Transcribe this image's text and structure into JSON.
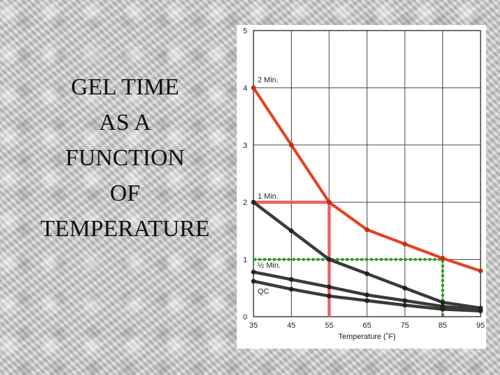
{
  "title": {
    "lines": [
      "GEL  TIME",
      "AS  A",
      "FUNCTION",
      "OF",
      "TEMPERATURE"
    ]
  },
  "chart_data": {
    "type": "line",
    "xlabel": "Temperature (˚F)",
    "ylabel": "",
    "x_ticks": [
      35,
      45,
      55,
      65,
      75,
      85,
      95
    ],
    "y_ticks": [
      0,
      1,
      2,
      3,
      4,
      5
    ],
    "xlim": [
      35,
      95
    ],
    "ylim": [
      0,
      5
    ],
    "grid": true,
    "series": [
      {
        "name": "2 Min.",
        "color": "#e8401f",
        "x": [
          35,
          45,
          55,
          65,
          75,
          85,
          95
        ],
        "y": [
          4.0,
          3.0,
          2.0,
          1.52,
          1.27,
          1.02,
          0.8
        ]
      },
      {
        "name": "1 Min.",
        "color": "#3a3a3a",
        "x": [
          35,
          45,
          55,
          65,
          75,
          85,
          95
        ],
        "y": [
          2.0,
          1.5,
          1.0,
          0.75,
          0.5,
          0.25,
          0.15
        ]
      },
      {
        "name": "½ Min.",
        "color": "#3a3a3a",
        "x": [
          35,
          45,
          55,
          65,
          75,
          85,
          95
        ],
        "y": [
          0.78,
          0.65,
          0.52,
          0.38,
          0.28,
          0.18,
          0.12
        ]
      },
      {
        "name": "QC",
        "color": "#3a3a3a",
        "x": [
          35,
          45,
          55,
          65,
          75,
          85,
          95
        ],
        "y": [
          0.62,
          0.48,
          0.36,
          0.28,
          0.2,
          0.13,
          0.1
        ]
      }
    ],
    "reference_lines": [
      {
        "color": "#f06060",
        "style": "solid",
        "points": [
          [
            35,
            2.0
          ],
          [
            55,
            2.0
          ],
          [
            55,
            0
          ]
        ]
      },
      {
        "color": "#1aa51a",
        "style": "dotted",
        "points": [
          [
            35,
            1.0
          ],
          [
            85,
            1.0
          ],
          [
            85,
            0
          ]
        ]
      }
    ]
  }
}
